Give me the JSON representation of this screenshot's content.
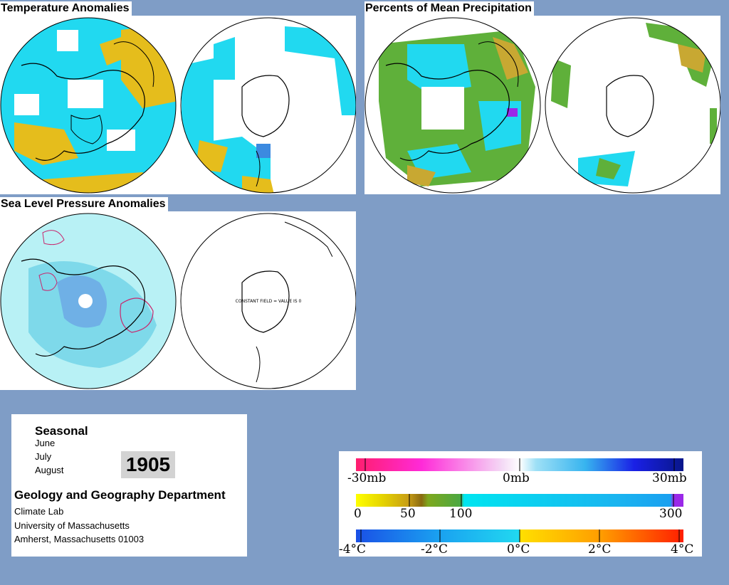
{
  "panels": {
    "temperature": {
      "title": "Temperature Anomalies"
    },
    "precipitation": {
      "title": "Percents of Mean Precipitation"
    },
    "pressure": {
      "title": "Sea Level Pressure Anomalies",
      "constant_label": "CONSTANT FIELD = VALUE IS 0"
    }
  },
  "info": {
    "season_title": "Seasonal",
    "months": [
      "June",
      "July",
      "August"
    ],
    "year": "1905",
    "department": "Geology and Geography Department",
    "lab": "Climate Lab",
    "university": "University of Massachusetts",
    "address": "Amherst, Massachusetts 01003"
  },
  "legends": {
    "pressure": {
      "labels": [
        "-30mb",
        "0mb",
        "30mb"
      ]
    },
    "precipitation": {
      "labels": [
        "0",
        "50",
        "100",
        "300"
      ]
    },
    "temperature": {
      "labels": [
        "-4°C",
        "-2°C",
        "0°C",
        "2°C",
        "4°C"
      ]
    }
  },
  "colors": {
    "background": "#7f9dc6",
    "cyan": "#21d9f0",
    "light_cyan": "#b8f1f5",
    "yellow_anomaly": "#e5bd1c",
    "green_precip": "#5fb03a",
    "pressure_low": "#6fb0e6",
    "pressure_high_contour": "#c8286e"
  }
}
